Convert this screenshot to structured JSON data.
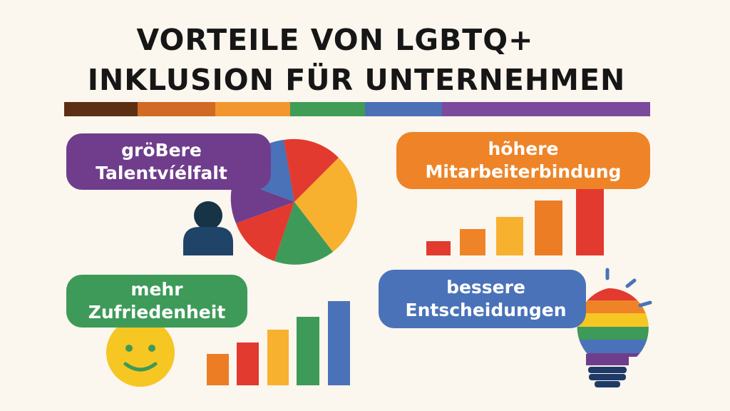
{
  "title": {
    "line1": "VORTEILE VON LGBTQ+",
    "line2": "INKLUSION FÜR UNTERNEHMEN"
  },
  "rainbow_colors": [
    "#5c2f14",
    "#d06a24",
    "#f2972e",
    "#3f9d55",
    "#4b70b6",
    "#7b4a9c"
  ],
  "cards": [
    {
      "line1": "gröBere",
      "line2": "Talentvíélfalt",
      "color": "#6f3d8c",
      "icon": "pie-chart-icon"
    },
    {
      "line1": "hõhere",
      "line2": "Mitarbeiterbindung",
      "color": "#ee8427",
      "icon": "bar-chart-icon"
    },
    {
      "line1": "mehr",
      "line2": "Zufriedenheit",
      "color": "#3d9a58",
      "icon": "smiley-icon"
    },
    {
      "line1": "bessere",
      "line2": "Entscheidungen",
      "color": "#4a72b8",
      "icon": "rainbow-lightbulb-icon"
    }
  ],
  "icons": [
    "person-icon",
    "pie-chart-icon",
    "bar-chart-icon",
    "smiley-icon",
    "rainbow-lightbulb-icon"
  ]
}
